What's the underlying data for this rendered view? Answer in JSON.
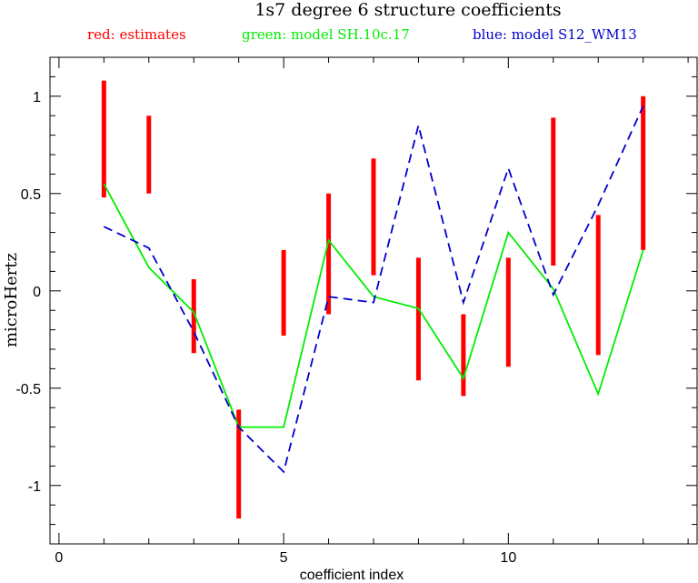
{
  "chart_data": {
    "type": "line",
    "title": "1s7 degree 6 structure coefficients",
    "xlabel": "coefficient index",
    "ylabel": "microHertz",
    "xlim": [
      -0.2,
      14.2
    ],
    "ylim": [
      -1.3,
      1.2
    ],
    "x_ticks": [
      0,
      5,
      10
    ],
    "y_ticks": [
      -1,
      -0.5,
      0,
      0.5,
      1
    ],
    "x_tick_labels": [
      "0",
      "5",
      "10"
    ],
    "y_tick_labels": [
      "-1",
      "-0.5",
      "0",
      "0.5",
      "1"
    ],
    "x_minor_step": 1,
    "y_minor_step": 0.1,
    "grid": false,
    "legend": [
      {
        "text": "red: estimates",
        "color": "#ff0000"
      },
      {
        "text": "green: model SH.10c.17",
        "color": "#00ee00"
      },
      {
        "text": "blue: model S12_WM13",
        "color": "#0000cc"
      }
    ],
    "estimates": {
      "name": "estimates",
      "color": "#ff0000",
      "x": [
        1,
        2,
        3,
        4,
        5,
        6,
        7,
        8,
        9,
        10,
        11,
        12,
        13
      ],
      "low": [
        0.48,
        0.5,
        -0.32,
        -1.17,
        -0.23,
        -0.12,
        0.08,
        -0.46,
        -0.54,
        -0.39,
        0.13,
        -0.33,
        0.21
      ],
      "high": [
        1.08,
        0.9,
        0.06,
        -0.61,
        0.21,
        0.5,
        0.68,
        0.17,
        -0.12,
        0.17,
        0.89,
        0.39,
        1.0
      ]
    },
    "series": [
      {
        "name": "model SH.10c.17",
        "color": "#00ee00",
        "style": "solid",
        "x": [
          1,
          2,
          3,
          4,
          5,
          6,
          7,
          8,
          9,
          10,
          11,
          12,
          13
        ],
        "values": [
          0.55,
          0.12,
          -0.11,
          -0.7,
          -0.7,
          0.26,
          -0.03,
          -0.09,
          -0.45,
          0.3,
          0.01,
          -0.53,
          0.21
        ]
      },
      {
        "name": "model S12_WM13",
        "color": "#0000cc",
        "style": "dashed",
        "x": [
          1,
          2,
          3,
          4,
          5,
          6,
          7,
          8,
          9,
          10,
          11,
          12,
          13
        ],
        "values": [
          0.33,
          0.22,
          -0.21,
          -0.7,
          -0.93,
          -0.03,
          -0.06,
          0.85,
          -0.06,
          0.63,
          -0.02,
          0.44,
          0.95
        ]
      }
    ]
  }
}
